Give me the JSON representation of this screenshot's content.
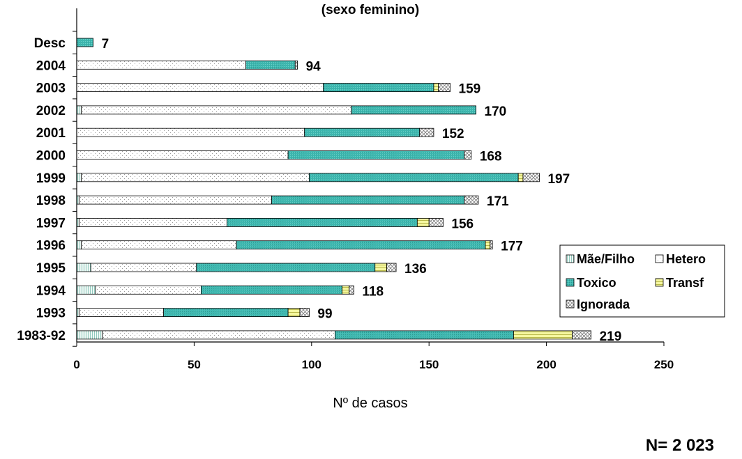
{
  "chart_data": {
    "type": "bar",
    "orientation": "horizontal",
    "stacked": true,
    "title": "(sexo feminino)",
    "xlabel": "Nº de casos",
    "ylabel": "",
    "xlim": [
      0,
      250
    ],
    "x_ticks": [
      "0",
      "50",
      "100",
      "150",
      "200",
      "250"
    ],
    "categories": [
      "Desc",
      "2004",
      "2003",
      "2002",
      "2001",
      "2000",
      "1999",
      "1998",
      "1997",
      "1996",
      "1995",
      "1994",
      "1993",
      "1983-92"
    ],
    "totals": [
      7,
      94,
      159,
      170,
      152,
      168,
      197,
      171,
      156,
      177,
      136,
      118,
      99,
      219
    ],
    "total_labels": [
      "7",
      "94",
      "159",
      "170",
      "152",
      "168",
      "197",
      "171",
      "156",
      "177",
      "136",
      "118",
      "99",
      "219"
    ],
    "series": [
      {
        "name": "Mãe/Filho",
        "color": "#e8f4f0",
        "values": [
          0,
          0,
          0,
          2,
          0,
          0,
          2,
          1,
          1,
          2,
          6,
          8,
          1,
          11
        ]
      },
      {
        "name": "Hetero",
        "color": "#ffffff",
        "values": [
          0,
          72,
          105,
          115,
          97,
          90,
          97,
          82,
          63,
          66,
          45,
          45,
          36,
          99
        ]
      },
      {
        "name": "Toxico",
        "color": "#3fb8b0",
        "values": [
          7,
          21,
          47,
          53,
          49,
          75,
          89,
          82,
          81,
          106,
          76,
          60,
          53,
          76
        ]
      },
      {
        "name": "Transf",
        "color": "#f2f59b",
        "values": [
          0,
          0,
          2,
          0,
          0,
          0,
          2,
          0,
          5,
          2,
          5,
          3,
          5,
          25
        ]
      },
      {
        "name": "Ignorada",
        "color": "#ffffff",
        "values": [
          0,
          1,
          5,
          0,
          6,
          3,
          7,
          6,
          6,
          1,
          4,
          2,
          4,
          8
        ]
      }
    ],
    "grid": false,
    "legend_position": "right"
  },
  "footer": {
    "n_label": "N= 2 023"
  }
}
